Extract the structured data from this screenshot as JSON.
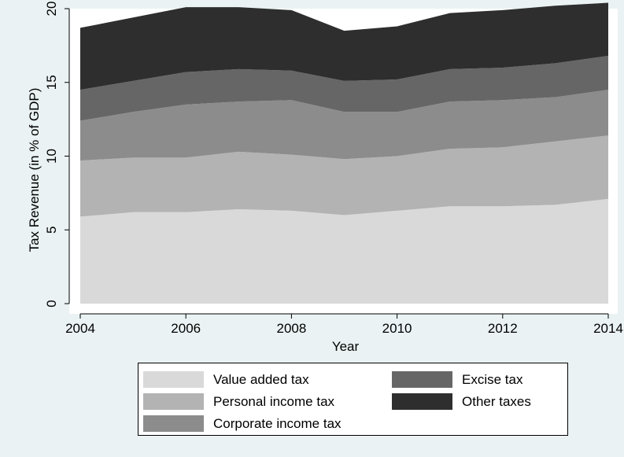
{
  "chart_data": {
    "type": "area",
    "stacked": true,
    "x": [
      2004,
      2005,
      2006,
      2007,
      2008,
      2009,
      2010,
      2011,
      2012,
      2013,
      2014
    ],
    "series": [
      {
        "name": "Value added tax",
        "color": "#d9d9d9",
        "values": [
          5.9,
          6.2,
          6.2,
          6.4,
          6.3,
          6.0,
          6.3,
          6.6,
          6.6,
          6.7,
          7.1
        ]
      },
      {
        "name": "Personal income tax",
        "color": "#b3b3b3",
        "values": [
          3.8,
          3.7,
          3.7,
          3.9,
          3.8,
          3.8,
          3.7,
          3.9,
          4.0,
          4.3,
          4.3
        ]
      },
      {
        "name": "Corporate income tax",
        "color": "#8c8c8c",
        "values": [
          2.7,
          3.1,
          3.6,
          3.4,
          3.7,
          3.2,
          3.0,
          3.2,
          3.2,
          3.0,
          3.1
        ]
      },
      {
        "name": "Excise tax",
        "color": "#666666",
        "values": [
          2.1,
          2.1,
          2.2,
          2.2,
          2.0,
          2.1,
          2.2,
          2.2,
          2.2,
          2.3,
          2.3
        ]
      },
      {
        "name": "Other taxes",
        "color": "#2e2e2e",
        "values": [
          4.2,
          4.3,
          4.4,
          4.2,
          4.1,
          3.4,
          3.6,
          3.8,
          3.9,
          3.9,
          3.6
        ]
      }
    ],
    "xlabel": "Year",
    "ylabel": "Tax Revenue (in % of GDP)",
    "xlim": [
      2004,
      2014
    ],
    "ylim": [
      0,
      20
    ],
    "xticks": [
      2004,
      2006,
      2008,
      2010,
      2012,
      2014
    ],
    "yticks": [
      0,
      5,
      10,
      15,
      20
    ],
    "grid": false,
    "legend_position": "bottom"
  },
  "colors": {
    "background": "#eaf2f3",
    "plot_background": "#ffffff"
  }
}
